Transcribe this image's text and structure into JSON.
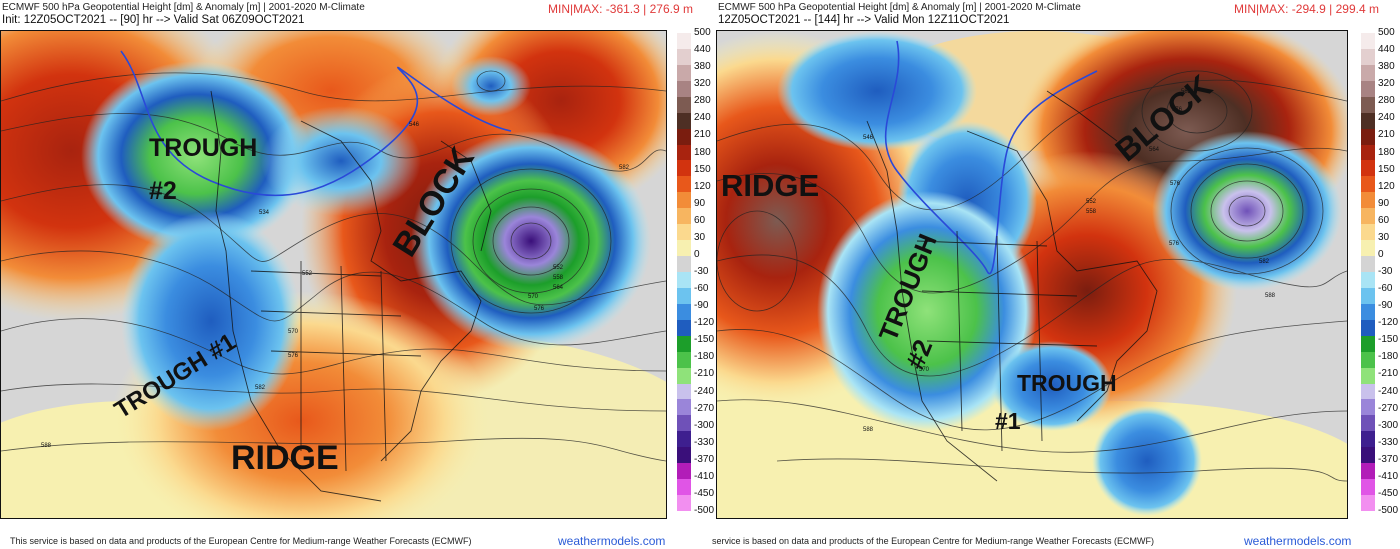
{
  "left": {
    "title": "ECMWF 500 hPa Geopotential Height [dm] & Anomaly [m] | 2001-2020 M-Climate",
    "subtitle": "Init: 12Z05OCT2021 -- [90] hr --> Valid Sat 06Z09OCT2021",
    "minmax": "MIN|MAX: -361.3 | 276.9 m",
    "footer": "This service is based on data and products of the European Centre for Medium-range Weather Forecasts (ECMWF)",
    "credit": "weathermodels.com",
    "annotations": {
      "trough2": "TROUGH",
      "trough2_num": "#2",
      "trough1": "TROUGH #1",
      "block": "BLOCK",
      "ridge": "RIDGE"
    },
    "contours": [
      "546",
      "534",
      "552",
      "570",
      "576",
      "582",
      "588",
      "552",
      "558",
      "564",
      "570",
      "576",
      "582"
    ]
  },
  "right": {
    "title": "ECMWF 500 hPa Geopotential Height [dm] & Anomaly [m] | 2001-2020 M-Climate",
    "subtitle": "12Z05OCT2021 -- [144] hr --> Valid Mon 12Z11OCT2021",
    "minmax": "MIN|MAX: -294.9 | 299.4 m",
    "footer": "service is based on data and products of the European Centre for Medium-range Weather Forecasts (ECMWF)",
    "credit": "weathermodels.com",
    "annotations": {
      "ridge": "RIDGE",
      "trough2": "TROUGH",
      "trough2_num": "#2",
      "block": "BLOCK",
      "trough1": "TROUGH",
      "trough1_num": "#1"
    },
    "contours": [
      "546",
      "570",
      "582",
      "576",
      "564",
      "552",
      "558",
      "576",
      "582",
      "588",
      "576",
      "588"
    ]
  },
  "colorbar": {
    "labels": [
      "500",
      "440",
      "380",
      "320",
      "280",
      "240",
      "210",
      "180",
      "150",
      "120",
      "90",
      "60",
      "30",
      "0",
      "-30",
      "-60",
      "-90",
      "-120",
      "-150",
      "-180",
      "-210",
      "-240",
      "-270",
      "-300",
      "-330",
      "-370",
      "-410",
      "-450",
      "-500"
    ],
    "colors": [
      "#f5ebeb",
      "#e3cfcf",
      "#c9a9a9",
      "#a88383",
      "#7d5b52",
      "#4e2f24",
      "#7a1d0f",
      "#a8230f",
      "#d2330f",
      "#e8581b",
      "#f28c38",
      "#f7b560",
      "#fbd98e",
      "#f7f0b0",
      "#d4d4d4",
      "#a9e4f5",
      "#6cc3ef",
      "#3b8de0",
      "#1f5dbf",
      "#1c9e2a",
      "#4cc24a",
      "#8fe27a",
      "#c9c1ec",
      "#9a85d9",
      "#6f51b8",
      "#3e1f8f",
      "#3a0f7a",
      "#b21db8",
      "#e055e6",
      "#f28ff0"
    ]
  }
}
